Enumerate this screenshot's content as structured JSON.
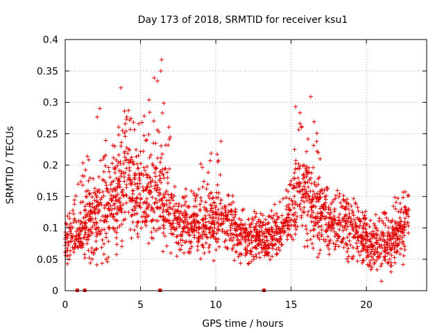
{
  "chart_data": {
    "type": "scatter",
    "title": "Day 173 of 2018, SRMTID for receiver ksu1",
    "xlabel": "GPS time / hours",
    "ylabel": "SRMTID / TECUs",
    "xlim": [
      0,
      24
    ],
    "ylim": [
      0,
      0.4
    ],
    "xticks": [
      0,
      5,
      10,
      15,
      20
    ],
    "xtick_labels": [
      "0",
      "5",
      "10",
      "15",
      "20"
    ],
    "yticks": [
      0,
      0.05,
      0.1,
      0.15,
      0.2,
      0.25,
      0.3,
      0.35,
      0.4
    ],
    "ytick_labels": [
      "0",
      "0.05",
      "0.1",
      "0.15",
      "0.2",
      "0.25",
      "0.3",
      "0.35",
      "0.4"
    ],
    "grid": true,
    "marker": "+",
    "color": "#e00000",
    "series": [
      {
        "name": "SRMTID",
        "description": "dense scatter of SRMTID values over 24 hours",
        "envelope": [
          {
            "x": 0.0,
            "low": 0.03,
            "mid": 0.07,
            "high": 0.11
          },
          {
            "x": 1.0,
            "low": 0.05,
            "mid": 0.09,
            "high": 0.19
          },
          {
            "x": 2.3,
            "low": 0.03,
            "mid": 0.12,
            "high": 0.29
          },
          {
            "x": 3.5,
            "low": 0.06,
            "mid": 0.14,
            "high": 0.26
          },
          {
            "x": 4.0,
            "low": 0.08,
            "mid": 0.18,
            "high": 0.29
          },
          {
            "x": 5.0,
            "low": 0.07,
            "mid": 0.15,
            "high": 0.27
          },
          {
            "x": 6.3,
            "low": 0.06,
            "mid": 0.15,
            "high": 0.37
          },
          {
            "x": 7.5,
            "low": 0.05,
            "mid": 0.1,
            "high": 0.15
          },
          {
            "x": 9.0,
            "low": 0.04,
            "mid": 0.1,
            "high": 0.2
          },
          {
            "x": 10.3,
            "low": 0.05,
            "mid": 0.11,
            "high": 0.24
          },
          {
            "x": 12.0,
            "low": 0.04,
            "mid": 0.08,
            "high": 0.13
          },
          {
            "x": 13.5,
            "low": 0.04,
            "mid": 0.08,
            "high": 0.12
          },
          {
            "x": 14.5,
            "low": 0.05,
            "mid": 0.09,
            "high": 0.17
          },
          {
            "x": 15.3,
            "low": 0.06,
            "mid": 0.14,
            "high": 0.29
          },
          {
            "x": 16.2,
            "low": 0.06,
            "mid": 0.15,
            "high": 0.31
          },
          {
            "x": 17.5,
            "low": 0.04,
            "mid": 0.1,
            "high": 0.17
          },
          {
            "x": 19.0,
            "low": 0.04,
            "mid": 0.1,
            "high": 0.15
          },
          {
            "x": 20.3,
            "low": 0.03,
            "mid": 0.07,
            "high": 0.12
          },
          {
            "x": 21.5,
            "low": 0.02,
            "mid": 0.07,
            "high": 0.14
          },
          {
            "x": 22.8,
            "low": 0.05,
            "mid": 0.11,
            "high": 0.17
          }
        ],
        "spikes": [
          {
            "x": 3.7,
            "y": 0.323
          },
          {
            "x": 6.4,
            "y": 0.368
          },
          {
            "x": 6.35,
            "y": 0.35
          },
          {
            "x": 2.3,
            "y": 0.29
          },
          {
            "x": 4.2,
            "y": 0.287
          },
          {
            "x": 16.3,
            "y": 0.309
          },
          {
            "x": 15.3,
            "y": 0.293
          },
          {
            "x": 10.35,
            "y": 0.238
          },
          {
            "x": 9.0,
            "y": 0.202
          },
          {
            "x": 5.1,
            "y": 0.268
          },
          {
            "x": 21.0,
            "y": 0.015
          }
        ]
      }
    ],
    "data_gaps_x": [
      0.8,
      1.3,
      6.3,
      13.2
    ]
  }
}
